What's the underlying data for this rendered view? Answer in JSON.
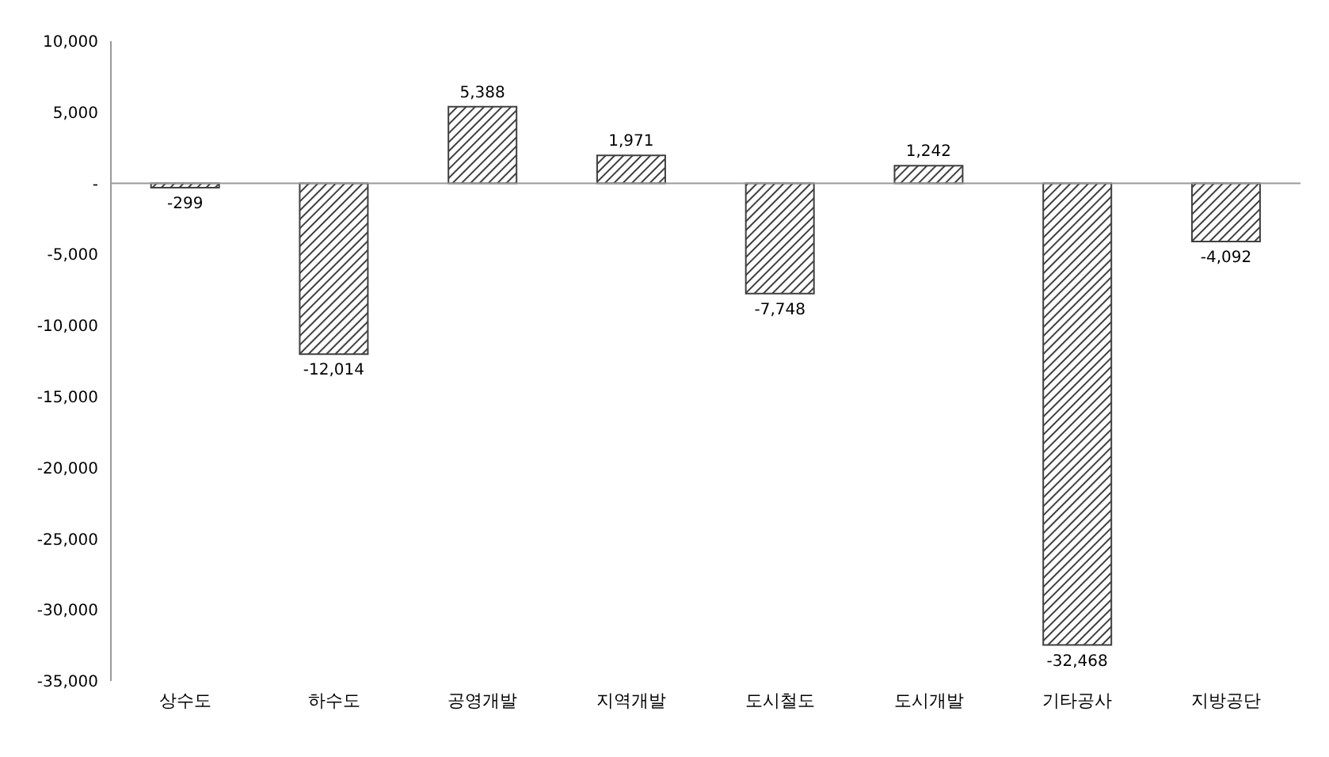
{
  "chart_data": {
    "type": "bar",
    "categories": [
      "상수도",
      "하수도",
      "공영개발",
      "지역개발",
      "도시철도",
      "도시개발",
      "기타공사",
      "지방공단"
    ],
    "values": [
      -299,
      -12014,
      5388,
      1971,
      -7748,
      1242,
      -32468,
      -4092
    ],
    "color": "#404040",
    "ylim": [
      -35000,
      10000
    ],
    "yticks": [
      {
        "value": -35000,
        "label": "-35,000"
      },
      {
        "value": -30000,
        "label": "-30,000"
      },
      {
        "value": -25000,
        "label": "-25,000"
      },
      {
        "value": -20000,
        "label": "-20,000"
      },
      {
        "value": -15000,
        "label": "-15,000"
      },
      {
        "value": -10000,
        "label": "-10,000"
      },
      {
        "value": -5000,
        "label": "-5,000"
      },
      {
        "value": 0,
        "label": "-"
      },
      {
        "value": 5000,
        "label": "5,000"
      },
      {
        "value": 10000,
        "label": "10,000"
      }
    ],
    "data_labels": true,
    "value_labels": [
      "-299",
      "-12,014",
      "5,388",
      "1,971",
      "-7,748",
      "1,242",
      "-32,468",
      "-4,092"
    ]
  }
}
